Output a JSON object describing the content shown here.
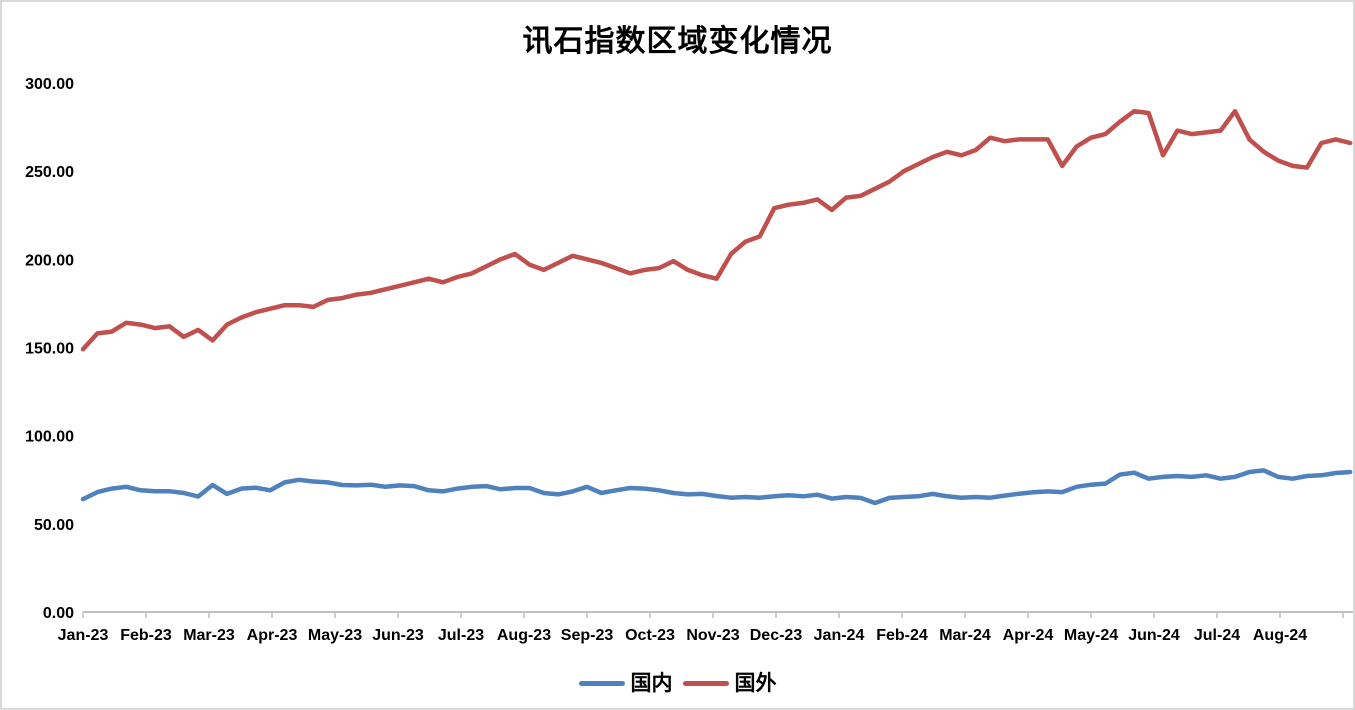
{
  "chart_data": {
    "type": "line",
    "title": "讯石指数区域变化情况",
    "xlabel": "",
    "ylabel": "",
    "ylim": [
      0,
      300
    ],
    "grid": false,
    "legend_position": "bottom",
    "x_frequency": "weekly",
    "categories": [
      "Jan-23",
      "Feb-23",
      "Mar-23",
      "Apr-23",
      "May-23",
      "Jun-23",
      "Jul-23",
      "Aug-23",
      "Sep-23",
      "Oct-23",
      "Nov-23",
      "Dec-23",
      "Jan-24",
      "Feb-24",
      "Mar-24",
      "Apr-24",
      "May-24",
      "Jun-24",
      "Jul-24",
      "Aug-24"
    ],
    "y_tick_labels": [
      "0.00",
      "50.00",
      "100.00",
      "150.00",
      "200.00",
      "250.00",
      "300.00"
    ],
    "y_tick_values": [
      0,
      50,
      100,
      150,
      200,
      250,
      300
    ],
    "axis_color": "#c0c0c0",
    "series": [
      {
        "name": "国内",
        "color": "#4F81BD",
        "values": [
          64,
          68,
          70,
          71,
          69,
          68.5,
          68.5,
          67.5,
          65.5,
          72,
          67,
          70,
          70.5,
          69,
          73.5,
          75,
          74,
          73.5,
          72,
          71.8,
          72.2,
          71,
          71.8,
          71.4,
          69,
          68.4,
          70,
          71,
          71.4,
          69.6,
          70.3,
          70.3,
          67.5,
          66.7,
          68.4,
          71,
          67.5,
          69,
          70.3,
          70,
          69,
          67.5,
          66.7,
          67,
          65.8,
          64.8,
          65.2,
          64.8,
          65.6,
          66.2,
          65.6,
          66.5,
          64.3,
          65.2,
          64.7,
          61.8,
          64.7,
          65.2,
          65.6,
          67,
          65.6,
          64.8,
          65.2,
          64.8,
          66,
          67.1,
          67.9,
          68.4,
          68,
          71,
          72.2,
          72.8,
          77.9,
          79,
          75.6,
          76.6,
          77.1,
          76.6,
          77.5,
          75.6,
          76.6,
          79.4,
          80.3,
          76.6,
          75.6,
          77.1,
          77.5,
          78.8,
          79.4
        ]
      },
      {
        "name": "国外",
        "color": "#C0504D",
        "values": [
          149,
          158,
          159,
          164,
          163,
          161,
          162,
          156,
          160,
          154,
          163,
          167,
          170,
          172,
          174,
          174,
          173,
          177,
          178,
          180,
          181,
          183,
          185,
          187,
          189,
          187,
          190,
          192,
          196,
          200,
          203,
          197,
          194,
          198,
          202,
          200,
          198,
          195,
          192,
          194,
          195,
          199,
          194,
          191,
          189,
          203,
          210,
          213,
          229,
          231,
          232,
          234,
          228,
          235,
          236,
          240,
          244,
          250,
          254,
          258,
          261,
          259,
          262,
          269,
          267,
          268,
          268,
          268,
          253,
          264,
          269,
          271,
          278,
          284,
          283,
          259,
          273,
          271,
          272,
          273,
          284,
          268,
          261,
          256,
          253,
          252,
          266,
          268,
          266
        ]
      }
    ]
  }
}
